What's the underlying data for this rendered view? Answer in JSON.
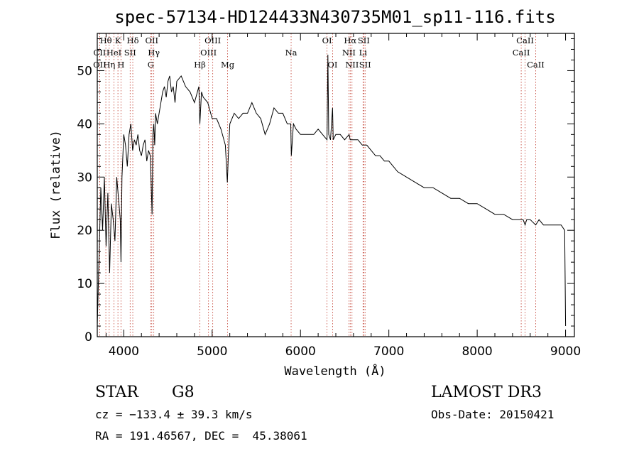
{
  "chart_data": {
    "type": "line",
    "title": "spec-57134-HD124433N430735M01_sp11-116.fits",
    "xlabel": "Wavelength (Å)",
    "ylabel": "Flux (relative)",
    "xlim": [
      3700,
      9100
    ],
    "ylim": [
      0,
      57
    ],
    "xticks": [
      4000,
      5000,
      6000,
      7000,
      8000,
      9000
    ],
    "yticks": [
      0,
      10,
      20,
      30,
      40,
      50
    ],
    "grid": false,
    "series": [
      {
        "name": "flux",
        "x": [
          3700,
          3720,
          3740,
          3760,
          3780,
          3800,
          3820,
          3840,
          3860,
          3880,
          3900,
          3920,
          3940,
          3960,
          3968,
          3980,
          4000,
          4020,
          4040,
          4060,
          4080,
          4100,
          4120,
          4140,
          4160,
          4180,
          4200,
          4220,
          4240,
          4260,
          4280,
          4300,
          4320,
          4330,
          4340,
          4350,
          4360,
          4380,
          4400,
          4420,
          4440,
          4460,
          4480,
          4500,
          4520,
          4540,
          4560,
          4580,
          4600,
          4650,
          4700,
          4750,
          4800,
          4850,
          4861,
          4880,
          4900,
          4950,
          5000,
          5050,
          5100,
          5150,
          5172,
          5183,
          5200,
          5250,
          5300,
          5350,
          5400,
          5450,
          5500,
          5550,
          5600,
          5650,
          5700,
          5750,
          5800,
          5850,
          5890,
          5896,
          5920,
          5950,
          6000,
          6050,
          6100,
          6150,
          6200,
          6250,
          6300,
          6310,
          6320,
          6340,
          6363,
          6370,
          6400,
          6450,
          6500,
          6550,
          6563,
          6580,
          6600,
          6650,
          6700,
          6750,
          6800,
          6850,
          6900,
          6950,
          7000,
          7100,
          7200,
          7300,
          7400,
          7500,
          7600,
          7700,
          7800,
          7900,
          8000,
          8100,
          8200,
          8300,
          8400,
          8450,
          8498,
          8520,
          8542,
          8560,
          8600,
          8662,
          8700,
          8750,
          8800,
          8850,
          8900,
          8950,
          8990,
          9000
        ],
        "y": [
          2,
          15,
          28,
          20,
          30,
          17,
          27,
          12,
          25,
          22,
          18,
          30,
          26,
          22,
          14,
          30,
          38,
          36,
          32,
          38,
          40,
          35,
          37,
          36,
          38,
          35,
          34,
          36,
          37,
          33,
          35,
          34,
          23,
          38,
          40,
          36,
          42,
          40,
          42,
          44,
          46,
          47,
          45,
          48,
          49,
          46,
          47,
          44,
          48,
          49,
          47,
          46,
          44,
          47,
          40,
          46,
          45,
          44,
          41,
          41,
          39,
          36,
          29,
          34,
          40,
          42,
          41,
          42,
          42,
          44,
          42,
          41,
          38,
          40,
          43,
          42,
          42,
          40,
          40,
          34,
          40,
          39,
          38,
          38,
          38,
          38,
          39,
          38,
          37,
          53,
          38,
          37,
          43,
          37,
          38,
          38,
          37,
          38,
          37,
          37,
          37,
          37,
          36,
          36,
          35,
          34,
          34,
          33,
          33,
          31,
          30,
          29,
          28,
          28,
          27,
          26,
          26,
          25,
          25,
          24,
          23,
          23,
          22,
          22,
          22,
          22,
          21,
          22,
          22,
          21,
          22,
          21,
          21,
          21,
          21,
          21,
          20,
          2
        ]
      }
    ],
    "spectral_lines": [
      {
        "label": "OII",
        "wavelength": 3727,
        "row": 2
      },
      {
        "label": "Hθ",
        "wavelength": 3797,
        "row": 0
      },
      {
        "label": "CII",
        "wavelength": 3727,
        "row": 1
      },
      {
        "label": "Hη",
        "wavelength": 3835,
        "row": 2
      },
      {
        "label": "HeI",
        "wavelength": 3889,
        "row": 1
      },
      {
        "label": "K",
        "wavelength": 3934,
        "row": 0
      },
      {
        "label": "H",
        "wavelength": 3968,
        "row": 2
      },
      {
        "label": "SII",
        "wavelength": 4072,
        "row": 1
      },
      {
        "label": "Hδ",
        "wavelength": 4102,
        "row": 0
      },
      {
        "label": "OII",
        "wavelength": 4317,
        "row": 0
      },
      {
        "label": "G",
        "wavelength": 4305,
        "row": 2
      },
      {
        "label": "Hγ",
        "wavelength": 4340,
        "row": 1
      },
      {
        "label": "OIII",
        "wavelength": 5007,
        "row": 0
      },
      {
        "label": "OIII",
        "wavelength": 4959,
        "row": 1
      },
      {
        "label": "Hβ",
        "wavelength": 4861,
        "row": 2
      },
      {
        "label": "Mg",
        "wavelength": 5175,
        "row": 2
      },
      {
        "label": "Na",
        "wavelength": 5894,
        "row": 1
      },
      {
        "label": "OI",
        "wavelength": 6300,
        "row": 0
      },
      {
        "label": "OI",
        "wavelength": 6363,
        "row": 2
      },
      {
        "label": "Hα",
        "wavelength": 6563,
        "row": 0
      },
      {
        "label": "NII",
        "wavelength": 6548,
        "row": 1
      },
      {
        "label": "NII",
        "wavelength": 6583,
        "row": 2
      },
      {
        "label": "SII",
        "wavelength": 6716,
        "row": 0
      },
      {
        "label": "Li",
        "wavelength": 6708,
        "row": 1
      },
      {
        "label": "SII",
        "wavelength": 6731,
        "row": 2
      },
      {
        "label": "CaII",
        "wavelength": 8542,
        "row": 0
      },
      {
        "label": "CaII",
        "wavelength": 8498,
        "row": 1
      },
      {
        "label": "CaII",
        "wavelength": 8662,
        "row": 2
      }
    ]
  },
  "info": {
    "object_class": "STAR",
    "subclass": "G8",
    "survey": "LAMOST DR3",
    "redshift": "cz = −133.4 ± 39.3 km/s",
    "obs_date": "Obs-Date: 20150421",
    "coords": "RA = 191.46567, DEC =  45.38061"
  },
  "colors": {
    "spectrum": "#000000",
    "line_marker": "#c0392b"
  }
}
